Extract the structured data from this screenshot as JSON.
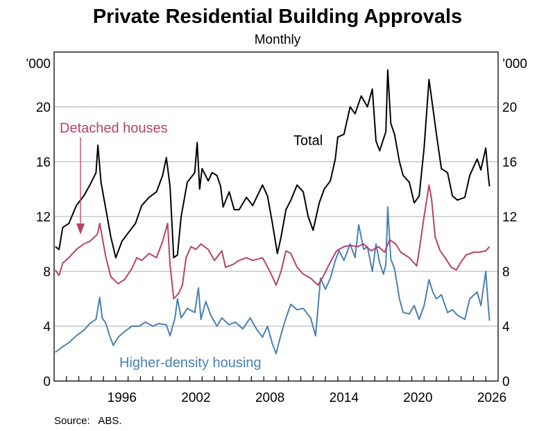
{
  "chart_data": {
    "type": "line",
    "title": "Private Residential Building Approvals",
    "subtitle": "Monthly",
    "ylabel_left": "’000",
    "ylabel_right": "’000",
    "ylim": [
      0,
      24
    ],
    "xlim": [
      1991,
      2027
    ],
    "yticks": [
      0,
      4,
      8,
      12,
      16,
      20
    ],
    "xticks": [
      1996,
      2002,
      2008,
      2014,
      2020,
      2026
    ],
    "grid": true,
    "source": "Source:   ABS.",
    "series": [
      {
        "name": "Total",
        "color": "#000000",
        "points": [
          [
            1991.1,
            9.8
          ],
          [
            1991.4,
            9.6
          ],
          [
            1991.7,
            11.2
          ],
          [
            1992.2,
            11.5
          ],
          [
            1992.8,
            12.8
          ],
          [
            1993.4,
            13.5
          ],
          [
            1993.9,
            14.3
          ],
          [
            1994.4,
            15.2
          ],
          [
            1994.55,
            17.2
          ],
          [
            1994.8,
            14.5
          ],
          [
            1995.2,
            12.5
          ],
          [
            1995.6,
            10.5
          ],
          [
            1996.0,
            9.0
          ],
          [
            1996.5,
            10.2
          ],
          [
            1997.0,
            10.8
          ],
          [
            1997.6,
            11.5
          ],
          [
            1998.1,
            12.8
          ],
          [
            1998.7,
            13.4
          ],
          [
            1999.3,
            13.8
          ],
          [
            1999.8,
            15.0
          ],
          [
            2000.1,
            16.3
          ],
          [
            2000.4,
            14.2
          ],
          [
            2000.7,
            9.0
          ],
          [
            2001.0,
            9.2
          ],
          [
            2001.3,
            12.0
          ],
          [
            2001.8,
            14.5
          ],
          [
            2002.4,
            15.2
          ],
          [
            2002.6,
            17.4
          ],
          [
            2002.8,
            14.0
          ],
          [
            2003.0,
            15.5
          ],
          [
            2003.5,
            14.6
          ],
          [
            2003.8,
            15.2
          ],
          [
            2004.2,
            15.0
          ],
          [
            2004.5,
            14.2
          ],
          [
            2004.7,
            12.7
          ],
          [
            2005.2,
            13.8
          ],
          [
            2005.6,
            12.5
          ],
          [
            2006.0,
            12.5
          ],
          [
            2006.6,
            13.4
          ],
          [
            2007.1,
            12.8
          ],
          [
            2007.9,
            14.3
          ],
          [
            2008.3,
            13.5
          ],
          [
            2008.7,
            11.5
          ],
          [
            2009.1,
            9.3
          ],
          [
            2009.4,
            10.5
          ],
          [
            2009.8,
            12.5
          ],
          [
            2010.2,
            13.2
          ],
          [
            2010.7,
            14.3
          ],
          [
            2011.2,
            13.8
          ],
          [
            2011.6,
            12.0
          ],
          [
            2012.0,
            11.0
          ],
          [
            2012.5,
            13.0
          ],
          [
            2012.9,
            14.0
          ],
          [
            2013.4,
            14.6
          ],
          [
            2013.8,
            16.2
          ],
          [
            2014.0,
            17.8
          ],
          [
            2014.5,
            18.0
          ],
          [
            2015.0,
            20.0
          ],
          [
            2015.4,
            19.5
          ],
          [
            2015.9,
            20.8
          ],
          [
            2016.4,
            20.0
          ],
          [
            2016.8,
            21.3
          ],
          [
            2017.1,
            17.5
          ],
          [
            2017.4,
            16.8
          ],
          [
            2017.9,
            18.2
          ],
          [
            2018.05,
            22.7
          ],
          [
            2018.3,
            18.8
          ],
          [
            2018.6,
            18.0
          ],
          [
            2019.0,
            16.0
          ],
          [
            2019.3,
            15.0
          ],
          [
            2019.8,
            14.5
          ],
          [
            2020.2,
            13.0
          ],
          [
            2020.6,
            13.5
          ],
          [
            2021.0,
            17.0
          ],
          [
            2021.4,
            22.0
          ],
          [
            2021.7,
            20.0
          ],
          [
            2022.0,
            18.0
          ],
          [
            2022.4,
            15.5
          ],
          [
            2022.9,
            15.2
          ],
          [
            2023.3,
            13.5
          ],
          [
            2023.7,
            13.2
          ],
          [
            2024.3,
            13.4
          ],
          [
            2024.7,
            15.0
          ],
          [
            2025.3,
            16.2
          ],
          [
            2025.6,
            15.4
          ],
          [
            2026.0,
            17.0
          ],
          [
            2026.2,
            15.0
          ],
          [
            2026.3,
            14.2
          ]
        ]
      },
      {
        "name": "Detached houses",
        "color": "#b5426b",
        "points": [
          [
            1991.1,
            8.1
          ],
          [
            1991.4,
            7.7
          ],
          [
            1991.7,
            8.6
          ],
          [
            1992.2,
            9.0
          ],
          [
            1992.8,
            9.6
          ],
          [
            1993.4,
            10.0
          ],
          [
            1993.9,
            10.2
          ],
          [
            1994.5,
            10.7
          ],
          [
            1994.7,
            11.5
          ],
          [
            1994.9,
            10.5
          ],
          [
            1995.2,
            9.0
          ],
          [
            1995.6,
            7.6
          ],
          [
            1996.2,
            7.1
          ],
          [
            1996.7,
            7.4
          ],
          [
            1997.3,
            8.2
          ],
          [
            1997.7,
            9.0
          ],
          [
            1998.1,
            8.8
          ],
          [
            1998.7,
            9.3
          ],
          [
            1999.3,
            9.0
          ],
          [
            1999.8,
            10.2
          ],
          [
            2000.2,
            11.5
          ],
          [
            2000.4,
            8.5
          ],
          [
            2000.7,
            6.0
          ],
          [
            2001.1,
            6.4
          ],
          [
            2001.4,
            7.0
          ],
          [
            2001.7,
            9.0
          ],
          [
            2002.1,
            9.8
          ],
          [
            2002.5,
            9.6
          ],
          [
            2002.9,
            10.0
          ],
          [
            2003.5,
            9.6
          ],
          [
            2004.0,
            8.8
          ],
          [
            2004.6,
            9.5
          ],
          [
            2004.9,
            8.3
          ],
          [
            2005.5,
            8.5
          ],
          [
            2006.0,
            8.8
          ],
          [
            2006.6,
            9.0
          ],
          [
            2007.1,
            8.8
          ],
          [
            2007.9,
            9.0
          ],
          [
            2008.5,
            8.0
          ],
          [
            2009.0,
            7.0
          ],
          [
            2009.4,
            8.0
          ],
          [
            2009.8,
            9.5
          ],
          [
            2010.2,
            9.3
          ],
          [
            2010.7,
            8.3
          ],
          [
            2011.2,
            7.8
          ],
          [
            2011.8,
            7.5
          ],
          [
            2012.4,
            7.0
          ],
          [
            2012.8,
            7.6
          ],
          [
            2013.3,
            8.5
          ],
          [
            2013.9,
            9.5
          ],
          [
            2014.5,
            9.8
          ],
          [
            2015.0,
            9.9
          ],
          [
            2015.6,
            9.8
          ],
          [
            2016.1,
            10.0
          ],
          [
            2016.7,
            9.5
          ],
          [
            2017.3,
            9.8
          ],
          [
            2017.8,
            9.4
          ],
          [
            2018.2,
            10.3
          ],
          [
            2018.7,
            10.0
          ],
          [
            2019.1,
            9.4
          ],
          [
            2019.8,
            9.0
          ],
          [
            2020.4,
            8.4
          ],
          [
            2020.6,
            9.5
          ],
          [
            2021.0,
            12.0
          ],
          [
            2021.4,
            14.3
          ],
          [
            2021.6,
            13.3
          ],
          [
            2021.9,
            10.5
          ],
          [
            2022.3,
            9.5
          ],
          [
            2022.7,
            9.0
          ],
          [
            2023.2,
            8.3
          ],
          [
            2023.6,
            8.1
          ],
          [
            2024.0,
            8.7
          ],
          [
            2024.4,
            9.2
          ],
          [
            2025.0,
            9.4
          ],
          [
            2025.5,
            9.4
          ],
          [
            2026.0,
            9.5
          ],
          [
            2026.3,
            9.8
          ]
        ]
      },
      {
        "name": "Higher-density housing",
        "color": "#4a80b0",
        "points": [
          [
            1991.1,
            2.1
          ],
          [
            1991.7,
            2.5
          ],
          [
            1992.2,
            2.8
          ],
          [
            1992.8,
            3.3
          ],
          [
            1993.4,
            3.7
          ],
          [
            1993.9,
            4.2
          ],
          [
            1994.4,
            4.5
          ],
          [
            1994.7,
            6.1
          ],
          [
            1994.9,
            4.6
          ],
          [
            1995.2,
            4.2
          ],
          [
            1995.5,
            3.3
          ],
          [
            1995.8,
            2.6
          ],
          [
            1996.2,
            3.2
          ],
          [
            1996.7,
            3.6
          ],
          [
            1997.3,
            4.0
          ],
          [
            1997.9,
            4.0
          ],
          [
            1998.4,
            4.3
          ],
          [
            1999.0,
            4.0
          ],
          [
            1999.5,
            4.2
          ],
          [
            2000.1,
            4.1
          ],
          [
            2000.4,
            3.3
          ],
          [
            2000.8,
            4.6
          ],
          [
            2001.0,
            6.0
          ],
          [
            2001.3,
            4.6
          ],
          [
            2001.8,
            5.3
          ],
          [
            2002.4,
            5.0
          ],
          [
            2002.7,
            6.8
          ],
          [
            2002.9,
            4.5
          ],
          [
            2003.3,
            5.8
          ],
          [
            2003.7,
            4.8
          ],
          [
            2004.2,
            4.0
          ],
          [
            2004.6,
            4.6
          ],
          [
            2005.2,
            4.1
          ],
          [
            2005.7,
            4.3
          ],
          [
            2006.3,
            3.8
          ],
          [
            2006.9,
            4.6
          ],
          [
            2007.4,
            3.8
          ],
          [
            2007.9,
            3.2
          ],
          [
            2008.3,
            4.0
          ],
          [
            2008.7,
            2.7
          ],
          [
            2009.0,
            2.0
          ],
          [
            2009.4,
            3.4
          ],
          [
            2009.8,
            4.6
          ],
          [
            2010.2,
            5.6
          ],
          [
            2010.7,
            5.2
          ],
          [
            2011.2,
            5.3
          ],
          [
            2011.8,
            4.6
          ],
          [
            2012.2,
            3.3
          ],
          [
            2012.6,
            7.5
          ],
          [
            2013.0,
            6.7
          ],
          [
            2013.4,
            7.5
          ],
          [
            2013.8,
            8.8
          ],
          [
            2014.1,
            9.5
          ],
          [
            2014.5,
            8.8
          ],
          [
            2015.0,
            10.0
          ],
          [
            2015.4,
            9.0
          ],
          [
            2015.7,
            11.4
          ],
          [
            2016.1,
            9.6
          ],
          [
            2016.4,
            9.8
          ],
          [
            2016.8,
            8.0
          ],
          [
            2017.1,
            10.0
          ],
          [
            2017.4,
            8.6
          ],
          [
            2017.7,
            7.8
          ],
          [
            2017.9,
            8.5
          ],
          [
            2018.05,
            12.7
          ],
          [
            2018.3,
            8.9
          ],
          [
            2018.6,
            8.2
          ],
          [
            2019.0,
            6.0
          ],
          [
            2019.3,
            5.0
          ],
          [
            2019.8,
            4.9
          ],
          [
            2020.2,
            5.5
          ],
          [
            2020.6,
            4.5
          ],
          [
            2021.0,
            5.5
          ],
          [
            2021.4,
            7.4
          ],
          [
            2021.7,
            6.5
          ],
          [
            2022.0,
            6.0
          ],
          [
            2022.4,
            6.3
          ],
          [
            2022.9,
            5.0
          ],
          [
            2023.3,
            5.2
          ],
          [
            2023.7,
            4.8
          ],
          [
            2024.3,
            4.5
          ],
          [
            2024.7,
            6.0
          ],
          [
            2025.3,
            6.5
          ],
          [
            2025.6,
            5.5
          ],
          [
            2026.0,
            8.0
          ],
          [
            2026.2,
            5.5
          ],
          [
            2026.3,
            4.4
          ]
        ]
      }
    ],
    "annotations": {
      "total_label": "Total",
      "detached_label": "Detached houses",
      "higher_density_label": "Higher-density housing"
    }
  }
}
